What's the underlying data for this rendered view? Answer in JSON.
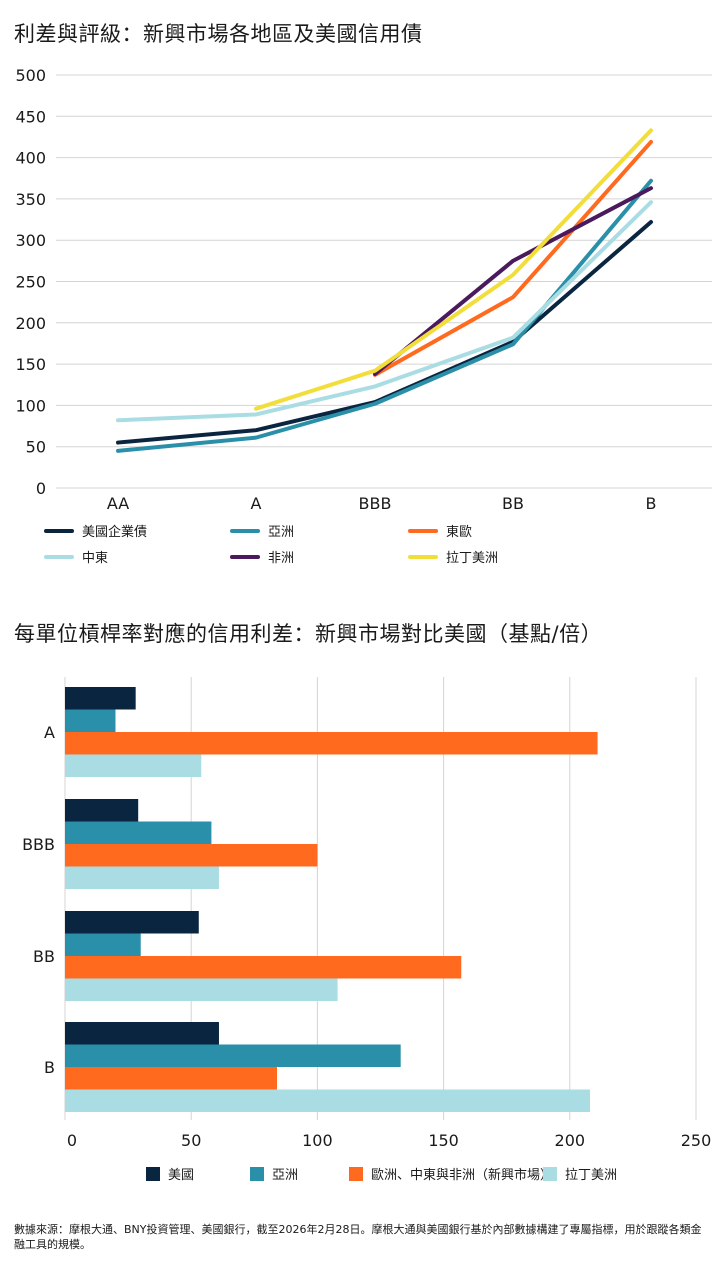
{
  "chart_data": [
    {
      "type": "line",
      "title": "利差與評級：新興市場各地區及美國信用債",
      "categories": [
        "AA",
        "A",
        "BBB",
        "BB",
        "B"
      ],
      "ylim": [
        0,
        500
      ],
      "yticks": [
        0,
        50,
        100,
        150,
        200,
        250,
        300,
        350,
        400,
        450,
        500
      ],
      "grid": true,
      "legend_position": "bottom",
      "series": [
        {
          "name": "美國企業債",
          "color": "#0a2540",
          "values": [
            55,
            70,
            104,
            177,
            322
          ]
        },
        {
          "name": "亞洲",
          "color": "#2a8fa8",
          "values": [
            45,
            61,
            102,
            174,
            372
          ]
        },
        {
          "name": "東歐",
          "color": "#ff6a1f",
          "values": [
            null,
            null,
            137,
            231,
            419
          ]
        },
        {
          "name": "中東",
          "color": "#a9dde3",
          "values": [
            82,
            89,
            123,
            182,
            346
          ]
        },
        {
          "name": "非洲",
          "color": "#4a1a5c",
          "values": [
            null,
            null,
            138,
            275,
            363
          ]
        },
        {
          "name": "拉丁美洲",
          "color": "#f2de3a",
          "values": [
            null,
            96,
            142,
            258,
            433
          ]
        }
      ]
    },
    {
      "type": "bar",
      "orientation": "horizontal",
      "title": "每單位槓桿率對應的信用利差：新興市場對比美國（基點/倍）",
      "categories": [
        "A",
        "BBB",
        "BB",
        "B"
      ],
      "xlim": [
        0,
        250
      ],
      "xticks": [
        0,
        50,
        100,
        150,
        200,
        250
      ],
      "grid": true,
      "legend_position": "bottom",
      "series": [
        {
          "name": "美國",
          "color": "#0a2540",
          "values": [
            28,
            29,
            53,
            61
          ]
        },
        {
          "name": "亞洲",
          "color": "#2a8fa8",
          "values": [
            20,
            58,
            30,
            133
          ]
        },
        {
          "name": "歐洲、中東與非洲（新興市場）",
          "color": "#ff6a1f",
          "values": [
            211,
            100,
            157,
            84
          ]
        },
        {
          "name": "拉丁美洲",
          "color": "#a9dde3",
          "values": [
            54,
            61,
            108,
            208
          ]
        }
      ]
    }
  ],
  "footnote": "數據來源：摩根大通、BNY投資管理、美國銀行，截至2026年2月28日。摩根大通與美國銀行基於內部數據構建了專屬指標，用於跟蹤各類金融工具的規模。"
}
